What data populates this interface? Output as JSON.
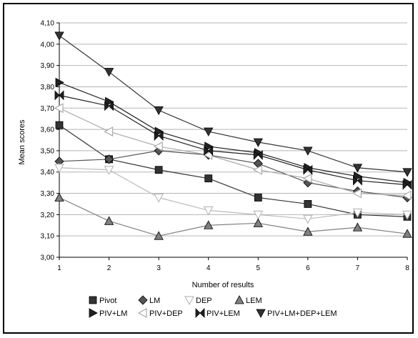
{
  "chart_data": {
    "type": "line",
    "title": "",
    "xlabel": "Number of results",
    "ylabel": "Mean scores",
    "x": [
      1,
      2,
      3,
      4,
      5,
      6,
      7,
      8
    ],
    "ylim": [
      3.0,
      4.1
    ],
    "yticks": [
      "3,00",
      "3,10",
      "3,20",
      "3,30",
      "3,40",
      "3,50",
      "3,60",
      "3,70",
      "3,80",
      "3,90",
      "4,00",
      "4,10"
    ],
    "xticks": [
      "1",
      "2",
      "3",
      "4",
      "5",
      "6",
      "7",
      "8"
    ],
    "grid": "horizontal",
    "legend_position": "bottom",
    "series": [
      {
        "name": "Pivot",
        "marker": "square",
        "color": "#333333",
        "values": [
          3.62,
          3.46,
          3.41,
          3.37,
          3.28,
          3.25,
          3.2,
          3.19
        ]
      },
      {
        "name": "LM",
        "marker": "diamond",
        "color": "#555555",
        "values": [
          3.45,
          3.46,
          3.5,
          3.48,
          3.44,
          3.35,
          3.31,
          3.28
        ]
      },
      {
        "name": "DEP",
        "marker": "triangle-down-open",
        "color": "#bbbbbb",
        "values": [
          3.42,
          3.41,
          3.28,
          3.22,
          3.2,
          3.18,
          3.21,
          3.2
        ]
      },
      {
        "name": "LEM",
        "marker": "triangle-up",
        "color": "#808080",
        "values": [
          3.28,
          3.17,
          3.1,
          3.15,
          3.16,
          3.12,
          3.14,
          3.11
        ]
      },
      {
        "name": "PIV+LM",
        "marker": "triangle-right",
        "color": "#222222",
        "values": [
          3.82,
          3.73,
          3.59,
          3.52,
          3.49,
          3.42,
          3.38,
          3.35
        ]
      },
      {
        "name": "PIV+DEP",
        "marker": "triangle-left-open",
        "color": "#aaaaaa",
        "values": [
          3.7,
          3.59,
          3.52,
          3.48,
          3.41,
          3.37,
          3.3,
          3.29
        ]
      },
      {
        "name": "PIV+LEM",
        "marker": "bowtie",
        "color": "#222222",
        "values": [
          3.76,
          3.71,
          3.57,
          3.5,
          3.48,
          3.41,
          3.36,
          3.34
        ]
      },
      {
        "name": "PIV+LM+DEP+LEM",
        "marker": "triangle-down",
        "color": "#333333",
        "values": [
          4.04,
          3.87,
          3.69,
          3.59,
          3.54,
          3.5,
          3.42,
          3.4
        ]
      }
    ]
  }
}
